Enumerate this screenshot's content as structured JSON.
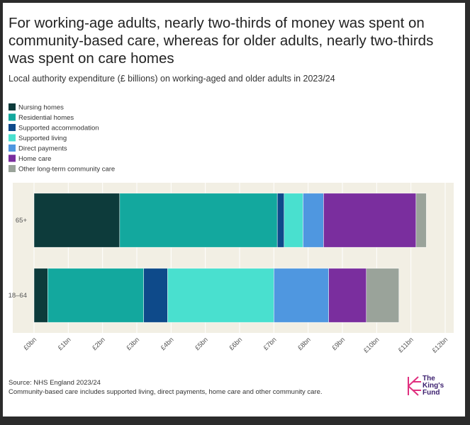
{
  "title": "For working-age adults, nearly two-thirds of money was spent on community-based care, whereas for older adults, nearly two-thirds was spent on care homes",
  "subtitle": "Local authority expenditure (£ billions) on working-aged and older adults in 2023/24",
  "chart_data": {
    "type": "stacked-barh",
    "categories": [
      "65+",
      "18–64"
    ],
    "series": [
      {
        "name": "Nursing homes",
        "color": "#0d3b3b",
        "values": [
          2.5,
          0.4
        ]
      },
      {
        "name": "Residential homes",
        "color": "#13a89e",
        "values": [
          4.6,
          2.8
        ]
      },
      {
        "name": "Supported accommodation",
        "color": "#0e4a8a",
        "values": [
          0.2,
          0.7
        ]
      },
      {
        "name": "Supported living",
        "color": "#49e0cf",
        "values": [
          0.55,
          3.1
        ]
      },
      {
        "name": "Direct payments",
        "color": "#4f97e0",
        "values": [
          0.6,
          1.6
        ]
      },
      {
        "name": "Home care",
        "color": "#7a2e9e",
        "values": [
          2.7,
          1.1
        ]
      },
      {
        "name": "Other long-term community care",
        "color": "#9aa39a",
        "values": [
          0.3,
          0.95
        ]
      }
    ],
    "xlim": [
      0,
      12
    ],
    "xticks": [
      {
        "value": 0,
        "label": "£0bn"
      },
      {
        "value": 1,
        "label": "£1bn"
      },
      {
        "value": 2,
        "label": "£2bn"
      },
      {
        "value": 3,
        "label": "£3bn"
      },
      {
        "value": 4,
        "label": "£4bn"
      },
      {
        "value": 5,
        "label": "£5bn"
      },
      {
        "value": 6,
        "label": "£6bn"
      },
      {
        "value": 7,
        "label": "£7bn"
      },
      {
        "value": 8,
        "label": "£8bn"
      },
      {
        "value": 9,
        "label": "£9bn"
      },
      {
        "value": 10,
        "label": "£10bn"
      },
      {
        "value": 11,
        "label": "£11bn"
      },
      {
        "value": 12,
        "label": "£12bn"
      }
    ],
    "grid": true
  },
  "source": "Source: NHS England 2023/24",
  "note": "Community-based care includes supported living, direct payments, home care and other community care.",
  "logo": [
    "The",
    "King's",
    "Fund"
  ]
}
